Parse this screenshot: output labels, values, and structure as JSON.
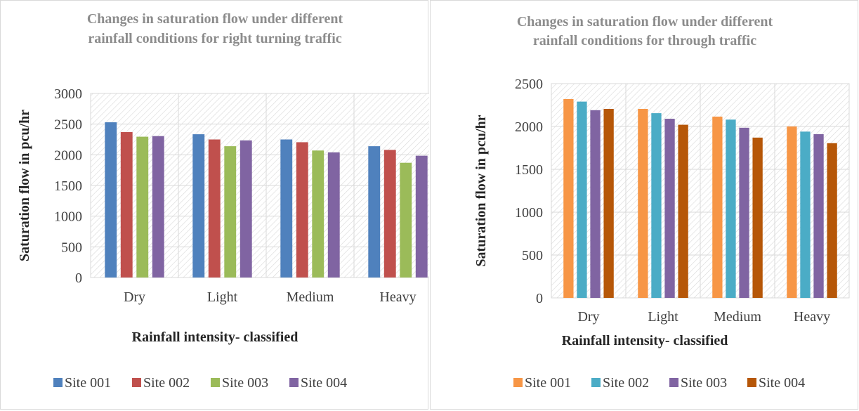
{
  "chart_data": [
    {
      "type": "bar",
      "title": "Changes in saturation flow under different rainfall conditions for right turning traffic",
      "title_lines": [
        "Changes in saturation flow under different",
        "rainfall conditions for right turning traffic"
      ],
      "xlabel": "Rainfall intensity- classified",
      "ylabel": "Saturation flow in pcu/hr",
      "categories": [
        "Dry",
        "Light",
        "Medium",
        "Heavy"
      ],
      "ylim": [
        0,
        3000
      ],
      "yticks": [
        0,
        500,
        1000,
        1500,
        2000,
        2500,
        3000
      ],
      "grid": true,
      "legend_position": "bottom",
      "series": [
        {
          "name": "Site 001",
          "color": "#4f81bd",
          "values": [
            2530,
            2335,
            2250,
            2140
          ]
        },
        {
          "name": "Site 002",
          "color": "#c0504d",
          "values": [
            2370,
            2250,
            2205,
            2080
          ]
        },
        {
          "name": "Site 003",
          "color": "#9bbb59",
          "values": [
            2295,
            2140,
            2070,
            1870
          ]
        },
        {
          "name": "Site 004",
          "color": "#8064a2",
          "values": [
            2305,
            2235,
            2040,
            1985
          ]
        }
      ]
    },
    {
      "type": "bar",
      "title": "Changes in saturation flow under different rainfall conditions for through traffic",
      "title_lines": [
        "Changes in saturation flow under different",
        "rainfall conditions for through traffic"
      ],
      "xlabel": "Rainfall intensity- classified",
      "ylabel": "Saturation flow in pcu/hr",
      "categories": [
        "Dry",
        "Light",
        "Medium",
        "Heavy"
      ],
      "ylim": [
        0,
        2500
      ],
      "yticks": [
        0,
        500,
        1000,
        1500,
        2000,
        2500
      ],
      "grid": true,
      "legend_position": "bottom",
      "series": [
        {
          "name": "Site 001",
          "color": "#f79646",
          "values": [
            2320,
            2205,
            2115,
            2000
          ]
        },
        {
          "name": "Site 002",
          "color": "#4bacc6",
          "values": [
            2290,
            2155,
            2080,
            1940
          ]
        },
        {
          "name": "Site 003",
          "color": "#8064a2",
          "values": [
            2190,
            2090,
            1985,
            1910
          ]
        },
        {
          "name": "Site 004",
          "color": "#b65708",
          "values": [
            2205,
            2020,
            1870,
            1805
          ]
        }
      ]
    }
  ]
}
